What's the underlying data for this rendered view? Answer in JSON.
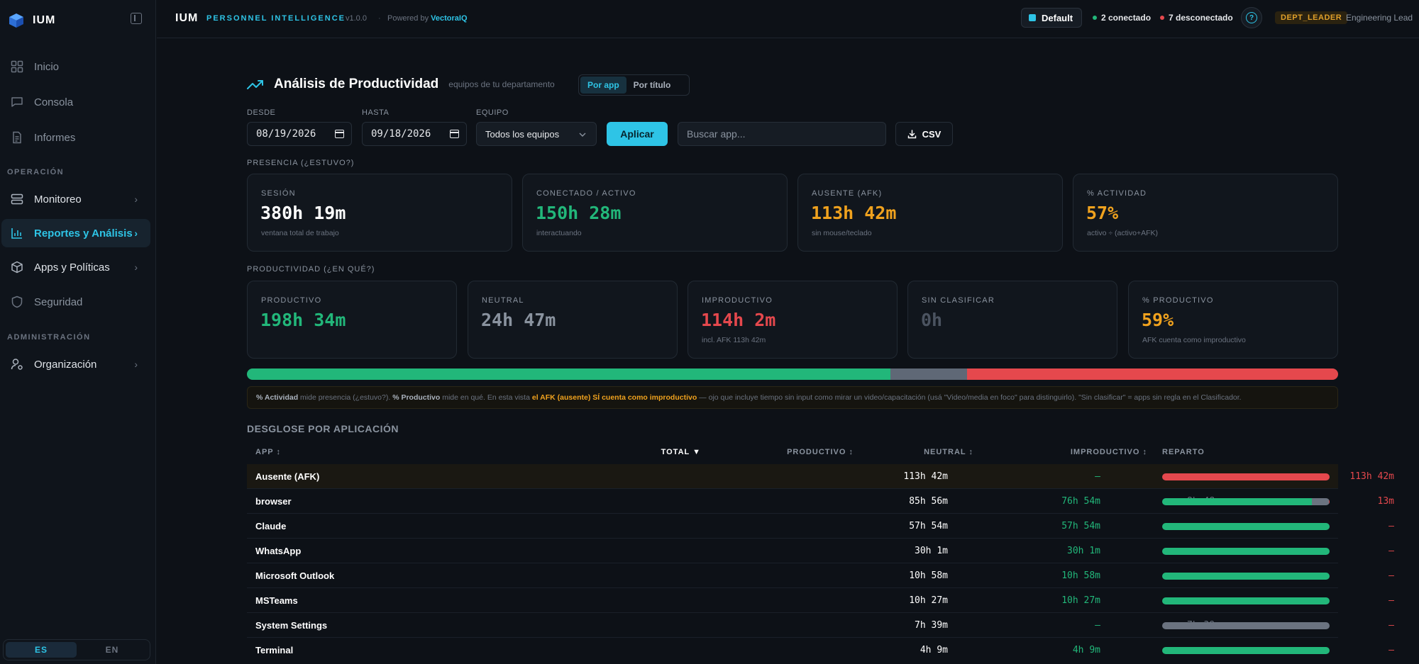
{
  "brand": {
    "name": "IUM"
  },
  "sidebar": {
    "items_top": [
      {
        "label": "Inicio",
        "icon": "grid-icon"
      },
      {
        "label": "Consola",
        "icon": "chat-icon"
      },
      {
        "label": "Informes",
        "icon": "document-icon"
      }
    ],
    "section_operacion": "OPERACIÓN",
    "items_operacion": [
      {
        "label": "Monitoreo",
        "icon": "server-icon",
        "chevron": "›"
      },
      {
        "label": "Reportes y Análisis",
        "icon": "chart-icon",
        "chevron": "›"
      },
      {
        "label": "Apps y Políticas",
        "icon": "box-icon",
        "chevron": "›"
      },
      {
        "label": "Seguridad",
        "icon": "shield-icon"
      }
    ],
    "section_admin": "ADMINISTRACIÓN",
    "items_admin": [
      {
        "label": "Organización",
        "icon": "user-gear-icon",
        "chevron": "›"
      }
    ],
    "lang": {
      "es": "ES",
      "en": "EN",
      "selected": "ES"
    }
  },
  "header": {
    "title": "IUM",
    "subtitle": "PERSONNEL INTELLIGENCE",
    "version": "v1.0.0",
    "separator": "·",
    "powered_prefix": "Powered by",
    "powered_brand": "VectoraIQ",
    "profile": "Default",
    "connected": "2 conectado",
    "disconnected": "7 desconectado",
    "help_glyph": "?",
    "role": "DEPT_LEADER",
    "role_name": "Engineering Lead"
  },
  "colors": {
    "accent": "#2ec4e6",
    "green": "#22b77a",
    "red": "#e5484d",
    "amber": "#f0a21e",
    "gray": "#6b7380"
  },
  "main": {
    "title": "Análisis de Productividad",
    "subtitle": "equipos de tu departamento",
    "view_tabs": [
      "Por app",
      "Por título"
    ],
    "filters": {
      "desde_label": "DESDE",
      "desde_value": "08/19/2026",
      "hasta_label": "HASTA",
      "hasta_value": "09/18/2026",
      "equipo_label": "EQUIPO",
      "equipo_value": "Todos los equipos",
      "apply": "Aplicar",
      "search_placeholder": "Buscar app...",
      "csv": "CSV"
    },
    "presence_label": "PRESENCIA (¿ESTUVO?)",
    "presence": [
      {
        "label": "SESIÓN",
        "value": "380h 19m",
        "sub": "ventana total de trabajo"
      },
      {
        "label": "CONECTADO / ACTIVO",
        "value": "150h 28m",
        "sub": "interactuando"
      },
      {
        "label": "AUSENTE (AFK)",
        "value": "113h 42m",
        "sub": "sin mouse/teclado"
      },
      {
        "label": "% ACTIVIDAD",
        "value": "57%",
        "sub": "activo ÷ (activo+AFK)"
      }
    ],
    "productivity_label": "PRODUCTIVIDAD (¿EN QUÉ?)",
    "productivity": [
      {
        "label": "PRODUCTIVO",
        "value": "198h 34m",
        "sub": ""
      },
      {
        "label": "NEUTRAL",
        "value": "24h 47m",
        "sub": ""
      },
      {
        "label": "IMPRODUCTIVO",
        "value": "114h 2m",
        "sub": "incl. AFK 113h 42m"
      },
      {
        "label": "SIN CLASIFICAR",
        "value": "0h",
        "sub": ""
      },
      {
        "label": "% PRODUCTIVO",
        "value": "59%",
        "sub": "AFK cuenta como improductivo"
      }
    ],
    "split_bar": {
      "productive": 0.59,
      "neutral": 0.07,
      "unproductive": 0.34
    },
    "note": {
      "b1": "% Actividad",
      "t1": " mide presencia (¿estuvo?). ",
      "b2": "% Productivo",
      "t2": " mide en qué. En esta vista ",
      "hl": "el AFK (ausente) SÍ cuenta como improductivo",
      "t3": " — ojo que incluye tiempo sin input como mirar un video/capacitación (usá \"Video/media en foco\" para distinguirlo). \"Sin clasificar\" = apps sin regla en el Clasificador."
    },
    "table": {
      "title": "DESGLOSE POR APLICACIÓN",
      "headers": {
        "app": "APP ↕",
        "total": "TOTAL ▼",
        "productivo": "PRODUCTIVO ↕",
        "neutral": "NEUTRAL ↕",
        "improductivo": "IMPRODUCTIVO ↕",
        "reparto": "REPARTO"
      },
      "rows": [
        {
          "app": "Ausente (AFK)",
          "total": "113h 42m",
          "productivo": "—",
          "neutral": "—",
          "improductivo": "113h 42m",
          "share": [
            0,
            0,
            1
          ]
        },
        {
          "app": "browser",
          "total": "85h 56m",
          "productivo": "76h 54m",
          "neutral": "8h 48m",
          "improductivo": "13m",
          "share": [
            0.895,
            0.102,
            0.003
          ]
        },
        {
          "app": "Claude",
          "total": "57h 54m",
          "productivo": "57h 54m",
          "neutral": "—",
          "improductivo": "—",
          "share": [
            1,
            0,
            0
          ]
        },
        {
          "app": "WhatsApp",
          "total": "30h 1m",
          "productivo": "30h 1m",
          "neutral": "—",
          "improductivo": "—",
          "share": [
            1,
            0,
            0
          ]
        },
        {
          "app": "Microsoft Outlook",
          "total": "10h 58m",
          "productivo": "10h 58m",
          "neutral": "—",
          "improductivo": "—",
          "share": [
            1,
            0,
            0
          ]
        },
        {
          "app": "MSTeams",
          "total": "10h 27m",
          "productivo": "10h 27m",
          "neutral": "—",
          "improductivo": "—",
          "share": [
            1,
            0,
            0
          ]
        },
        {
          "app": "System Settings",
          "total": "7h 39m",
          "productivo": "—",
          "neutral": "7h 39m",
          "improductivo": "—",
          "share": [
            0,
            1,
            0
          ]
        },
        {
          "app": "Terminal",
          "total": "4h 9m",
          "productivo": "4h 9m",
          "neutral": "—",
          "improductivo": "—",
          "share": [
            1,
            0,
            0
          ]
        }
      ]
    }
  }
}
